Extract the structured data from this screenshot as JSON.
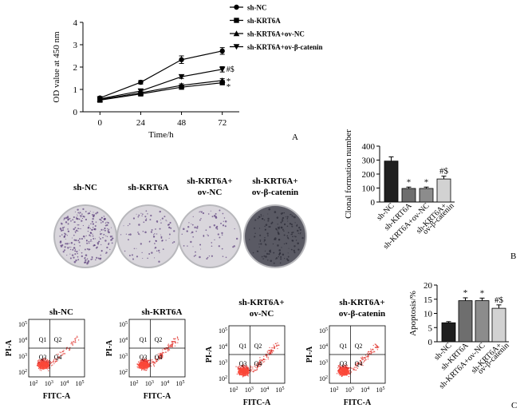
{
  "panel_labels": [
    "A",
    "B",
    "C"
  ],
  "colors": {
    "bar_sh_nc": "#1f1f1f",
    "bar_sh_krt6a": "#6e6e6e",
    "bar_ov_nc": "#8c8c8c",
    "bar_ov_bcat": "#d2d2d2",
    "plate_dish": "#d9d6dc",
    "plate_dish_dark": "#5a5a64",
    "colony": "#5b3f7c",
    "dot": "#e0302a",
    "dot_core": "#ff4a3a",
    "quadrant_line": "#000000"
  },
  "chart_data": [
    {
      "type": "line",
      "panel": "A",
      "xlabel": "Time/h",
      "ylabel": "OD value at 450 nm",
      "x": [
        0,
        24,
        48,
        72
      ],
      "xticks": [
        "0",
        "24",
        "48",
        "72"
      ],
      "yticks": [
        "0",
        "1",
        "2",
        "3",
        "4"
      ],
      "ylim": [
        0,
        4
      ],
      "legend_position": "top-right",
      "series": [
        {
          "name": "sh-NC",
          "marker": "circle",
          "values": [
            0.62,
            1.32,
            2.33,
            2.72
          ],
          "errors": [
            0.06,
            0.08,
            0.17,
            0.15
          ]
        },
        {
          "name": "sh-KRT6A",
          "marker": "square",
          "values": [
            0.52,
            0.8,
            1.1,
            1.3
          ],
          "errors": [
            0.05,
            0.05,
            0.06,
            0.07
          ]
        },
        {
          "name": "sh-KRT6A+ov-NC",
          "marker": "triangle-up",
          "values": [
            0.55,
            0.85,
            1.18,
            1.4
          ],
          "errors": [
            0.05,
            0.05,
            0.07,
            0.08
          ]
        },
        {
          "name": "sh-KRT6A+ov-β-catenin",
          "marker": "triangle-down",
          "values": [
            0.58,
            0.93,
            1.57,
            1.9
          ],
          "errors": [
            0.05,
            0.06,
            0.08,
            0.12
          ]
        }
      ],
      "annotations": [
        "#$",
        "*",
        "*"
      ]
    },
    {
      "type": "bar",
      "panel": "B",
      "ylabel": "Clonal formation number",
      "categories": [
        "sh-NC",
        "sh-KRT6A",
        "sh-KRT6A+ov-NC",
        "sh-KRT6A+ov-β-catenin"
      ],
      "category_lines": [
        [
          "sh-NC"
        ],
        [
          "sh-KRT6A"
        ],
        [
          "sh-KRT6A+ov-NC"
        ],
        [
          "sh-KRT6A+",
          "ov-β-catenin"
        ]
      ],
      "values": [
        293,
        97,
        97,
        165
      ],
      "errors": [
        30,
        10,
        10,
        20
      ],
      "significance": [
        "",
        "*",
        "*",
        "#$"
      ],
      "yticks": [
        "0",
        "100",
        "200",
        "300",
        "400"
      ],
      "ylim": [
        0,
        400
      ]
    },
    {
      "type": "bar",
      "panel": "C",
      "ylabel": "Apoptosis/%",
      "categories": [
        "sh-NC",
        "sh-KRT6A",
        "sh-KRT6A+ov-NC",
        "sh-KRT6A+ov-β-catenin"
      ],
      "category_lines": [
        [
          "sh-NC"
        ],
        [
          "sh-KRT6A"
        ],
        [
          "sh-KRT6A+ov-NC"
        ],
        [
          "sh-KRT6A+",
          "ov-β-catenin"
        ]
      ],
      "values": [
        6.7,
        14.5,
        14.5,
        11.8
      ],
      "errors": [
        0.4,
        1.0,
        0.9,
        1.2
      ],
      "significance": [
        "",
        "*",
        "*",
        "#$"
      ],
      "yticks": [
        "0",
        "5",
        "10",
        "15",
        "20"
      ],
      "ylim": [
        0,
        20
      ]
    }
  ],
  "plates": [
    {
      "title_lines": [
        "sh-NC"
      ],
      "density": 1.0,
      "dark": false
    },
    {
      "title_lines": [
        "sh-KRT6A"
      ],
      "density": 0.35,
      "dark": false
    },
    {
      "title_lines": [
        "sh-KRT6A+",
        "ov-NC"
      ],
      "density": 0.3,
      "dark": false
    },
    {
      "title_lines": [
        "sh-KRT6A+",
        "ov-β-catenin"
      ],
      "density": 0.6,
      "dark": true
    }
  ],
  "flow_plots": [
    {
      "title_lines": [
        "sh-NC"
      ],
      "q4_density": 0.5
    },
    {
      "title_lines": [
        "sh-KRT6A"
      ],
      "q4_density": 1.0
    },
    {
      "title_lines": [
        "sh-KRT6A+",
        "ov-NC"
      ],
      "q4_density": 1.0
    },
    {
      "title_lines": [
        "sh-KRT6A+",
        "ov-β-catenin"
      ],
      "q4_density": 0.8
    }
  ],
  "flow_axes": {
    "ylabel": "PI-A",
    "xlabel": "FITC-A",
    "quadrants": [
      "Q1",
      "Q2",
      "Q3",
      "Q4"
    ],
    "ticks": [
      {
        "base": "10",
        "exp": "2"
      },
      {
        "base": "10",
        "exp": "3"
      },
      {
        "base": "10",
        "exp": "4"
      },
      {
        "base": "10",
        "exp": "5"
      }
    ]
  }
}
